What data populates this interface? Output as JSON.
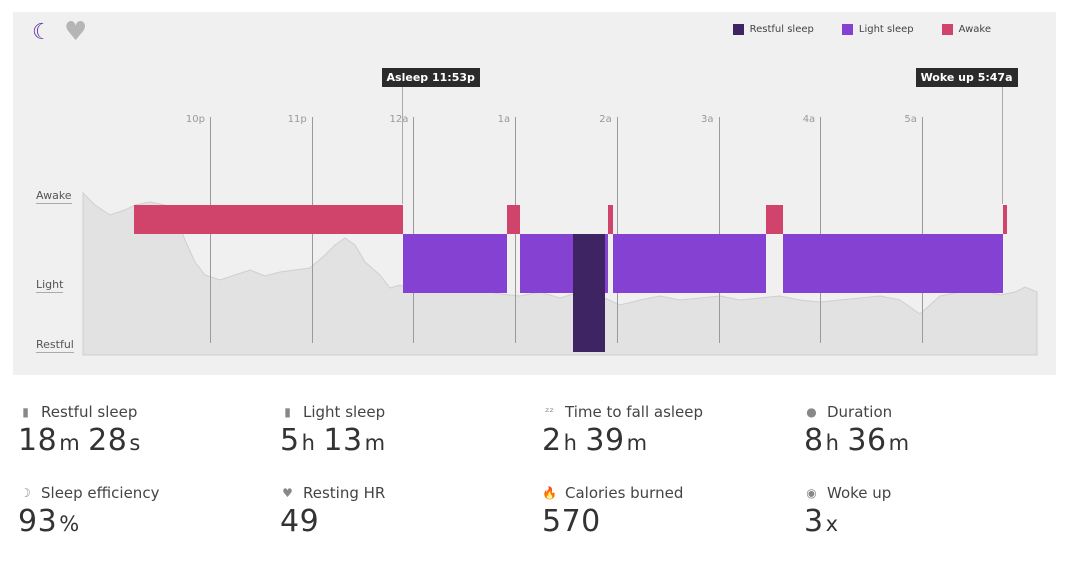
{
  "header": {
    "icons": [
      "moon-icon",
      "heart-icon"
    ]
  },
  "legend": [
    {
      "label": "Restful sleep",
      "color": "#3e2462"
    },
    {
      "label": "Light sleep",
      "color": "#8541d1"
    },
    {
      "label": "Awake",
      "color": "#d0436a"
    }
  ],
  "chart_data": {
    "type": "timeline",
    "x_unit": "minutes after 10p",
    "xlim": [
      -75,
      488
    ],
    "ticks": [
      {
        "label": "10p",
        "m": 0
      },
      {
        "label": "11p",
        "m": 60
      },
      {
        "label": "12a",
        "m": 120
      },
      {
        "label": "1a",
        "m": 180
      },
      {
        "label": "2a",
        "m": 240
      },
      {
        "label": "3a",
        "m": 300
      },
      {
        "label": "4a",
        "m": 360
      },
      {
        "label": "5a",
        "m": 420
      }
    ],
    "levels": [
      "Awake",
      "Light",
      "Restful"
    ],
    "markers": [
      {
        "label": "Asleep 11:53p",
        "m": 113
      },
      {
        "label": "Woke up 5:47a",
        "m": 467
      }
    ],
    "segments": [
      {
        "state": "Awake",
        "start": -45,
        "end": 114
      },
      {
        "state": "Light",
        "start": 114,
        "end": 175
      },
      {
        "state": "Awake",
        "start": 175,
        "end": 183
      },
      {
        "state": "Light",
        "start": 183,
        "end": 214
      },
      {
        "state": "Restful",
        "start": 214,
        "end": 233
      },
      {
        "state": "Light",
        "start": 233,
        "end": 235
      },
      {
        "state": "Awake",
        "start": 235,
        "end": 238
      },
      {
        "state": "Light",
        "start": 238,
        "end": 328
      },
      {
        "state": "Awake",
        "start": 328,
        "end": 338
      },
      {
        "state": "Light",
        "start": 338,
        "end": 468
      },
      {
        "state": "Awake",
        "start": 468,
        "end": 470
      }
    ]
  },
  "stats": [
    {
      "icon": "bar-chart-icon",
      "glyph": "▮",
      "label": "Restful sleep",
      "parts": [
        {
          "n": "18",
          "u": "m"
        },
        {
          "n": "28",
          "u": "s"
        }
      ]
    },
    {
      "icon": "bar-chart-icon",
      "glyph": "▮",
      "label": "Light sleep",
      "parts": [
        {
          "n": "5",
          "u": "h"
        },
        {
          "n": "13",
          "u": "m"
        }
      ]
    },
    {
      "icon": "zzz-icon",
      "glyph": "ᶻᶻ",
      "label": "Time to fall asleep",
      "parts": [
        {
          "n": "2",
          "u": "h"
        },
        {
          "n": "39",
          "u": "m"
        }
      ]
    },
    {
      "icon": "stopwatch-icon",
      "glyph": "●",
      "label": "Duration",
      "parts": [
        {
          "n": "8",
          "u": "h"
        },
        {
          "n": "36",
          "u": "m"
        }
      ]
    },
    {
      "icon": "moon-icon",
      "glyph": "☽",
      "label": "Sleep efficiency",
      "parts": [
        {
          "n": "93",
          "u": "%"
        }
      ]
    },
    {
      "icon": "heart-icon",
      "glyph": "♥",
      "label": "Resting HR",
      "parts": [
        {
          "n": "49",
          "u": ""
        }
      ]
    },
    {
      "icon": "flame-icon",
      "glyph": "🔥",
      "label": "Calories burned",
      "parts": [
        {
          "n": "570",
          "u": ""
        }
      ]
    },
    {
      "icon": "eye-icon",
      "glyph": "◉",
      "label": "Woke up",
      "parts": [
        {
          "n": "3",
          "u": "x"
        }
      ]
    }
  ]
}
